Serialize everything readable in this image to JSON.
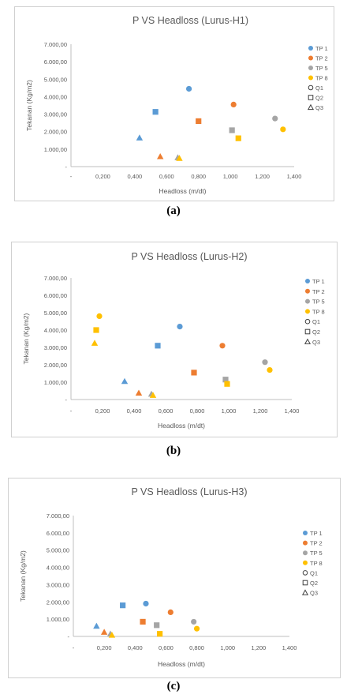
{
  "chart_data": [
    {
      "type": "scatter",
      "title": "P VS Headloss (Lurus-H1)",
      "xlabel": "Headloss (m/dt)",
      "ylabel": "Tekanan (Kg/m2)",
      "xlim": [
        0,
        1.4
      ],
      "ylim": [
        0,
        7000
      ],
      "xticks": [
        "-",
        "0,200",
        "0,400",
        "0,600",
        "0,800",
        "1,000",
        "1,200",
        "1,400"
      ],
      "yticks": [
        "-",
        "1.000,00",
        "2.000,00",
        "3.000,00",
        "4.000,00",
        "5.000,00",
        "6.000,00",
        "7.000,00"
      ],
      "legend_position": "right",
      "legend": [
        "TP 1",
        "TP 2",
        "TP 5",
        "TP 8",
        "Q1",
        "Q2",
        "Q3"
      ],
      "series": [
        {
          "name": "TP 1",
          "color": "#5b9bd5",
          "points": [
            {
              "x": 0.74,
              "y": 4450,
              "m": "circle"
            },
            {
              "x": 0.53,
              "y": 3130,
              "m": "square"
            },
            {
              "x": 0.43,
              "y": 1650,
              "m": "triangle"
            }
          ]
        },
        {
          "name": "TP 2",
          "color": "#ed7d31",
          "points": [
            {
              "x": 1.02,
              "y": 3550,
              "m": "circle"
            },
            {
              "x": 0.8,
              "y": 2600,
              "m": "square"
            },
            {
              "x": 0.56,
              "y": 580,
              "m": "triangle"
            }
          ]
        },
        {
          "name": "TP 5",
          "color": "#a5a5a5",
          "points": [
            {
              "x": 1.28,
              "y": 2750,
              "m": "circle"
            },
            {
              "x": 1.01,
              "y": 2080,
              "m": "square"
            },
            {
              "x": 0.67,
              "y": 520,
              "m": "triangle"
            }
          ]
        },
        {
          "name": "TP 8",
          "color": "#ffc000",
          "points": [
            {
              "x": 1.33,
              "y": 2130,
              "m": "circle"
            },
            {
              "x": 1.05,
              "y": 1620,
              "m": "square"
            },
            {
              "x": 0.68,
              "y": 480,
              "m": "triangle"
            }
          ]
        }
      ]
    },
    {
      "type": "scatter",
      "title": "P VS Headloss (Lurus-H2)",
      "xlabel": "Headloss (m/dt)",
      "ylabel": "Tekanan (Kg/m2)",
      "xlim": [
        0,
        1.4
      ],
      "ylim": [
        0,
        7000
      ],
      "xticks": [
        "-",
        "0,200",
        "0,400",
        "0,600",
        "0,800",
        "1,000",
        "1,200",
        "1,400"
      ],
      "yticks": [
        "-",
        "1.000,00",
        "2.000,00",
        "3.000,00",
        "4.000,00",
        "5.000,00",
        "6.000,00",
        "7.000,00"
      ],
      "legend_position": "right",
      "legend": [
        "TP 1",
        "TP 2",
        "TP 5",
        "TP 8",
        "Q1",
        "Q2",
        "Q3"
      ],
      "series": [
        {
          "name": "TP 1",
          "color": "#5b9bd5",
          "points": [
            {
              "x": 0.69,
              "y": 4200,
              "m": "circle"
            },
            {
              "x": 0.55,
              "y": 3100,
              "m": "square"
            },
            {
              "x": 0.34,
              "y": 1050,
              "m": "triangle"
            }
          ]
        },
        {
          "name": "TP 2",
          "color": "#ed7d31",
          "points": [
            {
              "x": 0.96,
              "y": 3100,
              "m": "circle"
            },
            {
              "x": 0.78,
              "y": 1550,
              "m": "square"
            },
            {
              "x": 0.43,
              "y": 380,
              "m": "triangle"
            }
          ]
        },
        {
          "name": "TP 5",
          "color": "#a5a5a5",
          "points": [
            {
              "x": 1.23,
              "y": 2150,
              "m": "circle"
            },
            {
              "x": 0.98,
              "y": 1150,
              "m": "square"
            },
            {
              "x": 0.51,
              "y": 320,
              "m": "triangle"
            }
          ]
        },
        {
          "name": "TP 8",
          "color": "#ffc000",
          "points": [
            {
              "x": 0.18,
              "y": 4800,
              "m": "circle"
            },
            {
              "x": 0.16,
              "y": 4000,
              "m": "square"
            },
            {
              "x": 0.15,
              "y": 3250,
              "m": "triangle"
            },
            {
              "x": 1.26,
              "y": 1700,
              "m": "circle"
            },
            {
              "x": 0.99,
              "y": 900,
              "m": "square"
            },
            {
              "x": 0.52,
              "y": 250,
              "m": "triangle"
            }
          ]
        }
      ]
    },
    {
      "type": "scatter",
      "title": "P VS Headloss (Lurus-H3)",
      "xlabel": "Headloss (m/dt)",
      "ylabel": "Tekanan (Kg/m2)",
      "xlim": [
        0,
        1.4
      ],
      "ylim": [
        0,
        7000
      ],
      "xticks": [
        "-",
        "0,200",
        "0,400",
        "0,600",
        "0,800",
        "1,000",
        "1,200",
        "1,400"
      ],
      "yticks": [
        "-",
        "1.000,00",
        "2.000,00",
        "3.000,00",
        "4.000,00",
        "5.000,00",
        "6.000,00",
        "7.000,00"
      ],
      "legend_position": "right",
      "legend": [
        "TP 1",
        "TP 2",
        "TP 5",
        "TP 8",
        "Q1",
        "Q2",
        "Q3"
      ],
      "series": [
        {
          "name": "TP 1",
          "color": "#5b9bd5",
          "points": [
            {
              "x": 0.47,
              "y": 1900,
              "m": "circle"
            },
            {
              "x": 0.32,
              "y": 1800,
              "m": "square"
            },
            {
              "x": 0.15,
              "y": 600,
              "m": "triangle"
            }
          ]
        },
        {
          "name": "TP 2",
          "color": "#ed7d31",
          "points": [
            {
              "x": 0.63,
              "y": 1400,
              "m": "circle"
            },
            {
              "x": 0.45,
              "y": 850,
              "m": "square"
            },
            {
              "x": 0.2,
              "y": 250,
              "m": "triangle"
            }
          ]
        },
        {
          "name": "TP 5",
          "color": "#a5a5a5",
          "points": [
            {
              "x": 0.78,
              "y": 850,
              "m": "circle"
            },
            {
              "x": 0.54,
              "y": 650,
              "m": "square"
            },
            {
              "x": 0.24,
              "y": 150,
              "m": "triangle"
            }
          ]
        },
        {
          "name": "TP 8",
          "color": "#ffc000",
          "points": [
            {
              "x": 0.8,
              "y": 450,
              "m": "circle"
            },
            {
              "x": 0.56,
              "y": 150,
              "m": "square"
            },
            {
              "x": 0.25,
              "y": 80,
              "m": "triangle"
            }
          ]
        }
      ]
    }
  ],
  "captions": [
    "(a)",
    "(b)",
    "(c)"
  ]
}
